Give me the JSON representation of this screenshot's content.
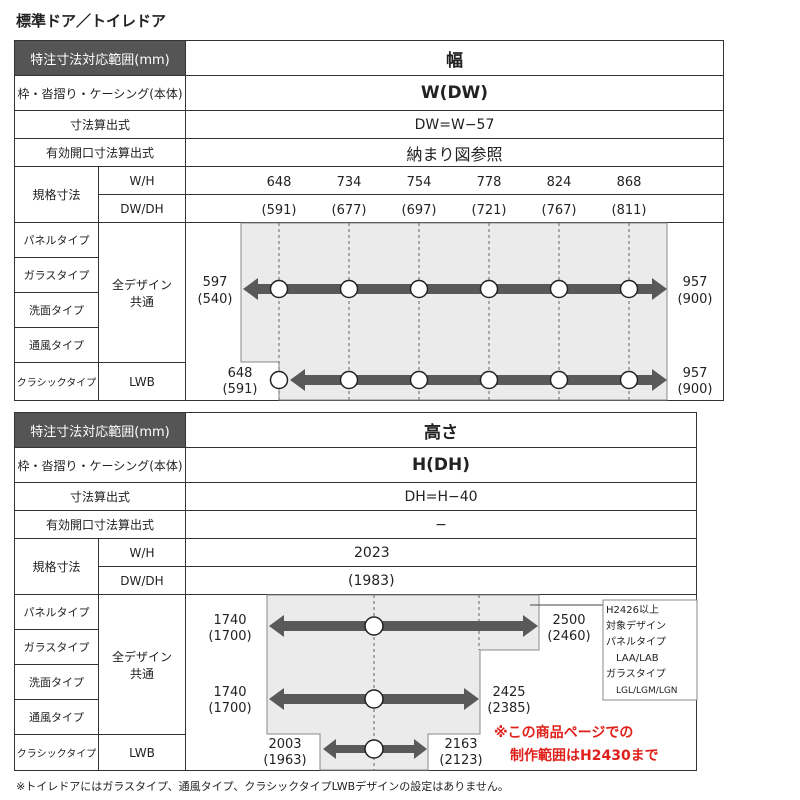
{
  "title": "標準ドア／トイレドア",
  "width_table": {
    "header": "特注寸法対応範囲(mm)",
    "header_value": "幅",
    "row_frame": "枠・沓摺り・ケーシング(本体)",
    "frame_value": "W(DW)",
    "row_formula": "寸法算出式",
    "formula_value": "DW=W−57",
    "row_opening": "有効開口寸法算出式",
    "opening_value": "納まり図参照",
    "std_label": "規格寸法",
    "wh_label": "W/H",
    "dwdh_label": "DW/DH",
    "wh": [
      "648",
      "734",
      "754",
      "778",
      "824",
      "868"
    ],
    "dwdh": [
      "(591)",
      "(677)",
      "(697)",
      "(721)",
      "(767)",
      "(811)"
    ],
    "types": [
      "パネルタイプ",
      "ガラスタイプ",
      "洗面タイプ",
      "通風タイプ",
      "クラシックタイプ"
    ],
    "all_design": "全デザイン\n共通",
    "lwb": "LWB",
    "range_all": {
      "min": "597",
      "min_dw": "(540)",
      "max": "957",
      "max_dw": "(900)"
    },
    "range_lwb": {
      "min": "648",
      "min_dw": "(591)",
      "max": "957",
      "max_dw": "(900)"
    }
  },
  "height_table": {
    "header": "特注寸法対応範囲(mm)",
    "header_value": "高さ",
    "row_frame": "枠・沓摺り・ケーシング(本体)",
    "frame_value": "H(DH)",
    "row_formula": "寸法算出式",
    "formula_value": "DH=H−40",
    "row_opening": "有効開口寸法算出式",
    "opening_value": "−",
    "std_label": "規格寸法",
    "wh_label": "W/H",
    "dwdh_label": "DW/DH",
    "wh": "2023",
    "dwdh": "(1983)",
    "types": [
      "パネルタイプ",
      "ガラスタイプ",
      "洗面タイプ",
      "通風タイプ",
      "クラシックタイプ"
    ],
    "all_design": "全デザイン\n共通",
    "lwb": "LWB",
    "range_a": {
      "min": "1740",
      "min_dh": "(1700)",
      "max": "2500",
      "max_dh": "(2460)"
    },
    "range_b": {
      "min": "1740",
      "min_dh": "(1700)",
      "max": "2425",
      "max_dh": "(2385)"
    },
    "range_lwb": {
      "min": "2003",
      "min_dh": "(1963)",
      "max": "2163",
      "max_dh": "(2123)"
    },
    "note_box": [
      "H2426以上",
      "対象デザイン",
      "パネルタイプ",
      "LAA/LAB",
      "ガラスタイプ",
      "LGL/LGM/LGN"
    ],
    "red_note": [
      "※この商品ページでの",
      "制作範囲はH2430まで"
    ]
  },
  "footnote": "※トイレドアにはガラスタイプ、通風タイプ、クラシックタイプLWBデザインの設定はありません。",
  "colors": {
    "header_bg": "#555555",
    "arrow": "#595959",
    "range_bg": "#ebebeb",
    "red_note": "#e0201b"
  }
}
